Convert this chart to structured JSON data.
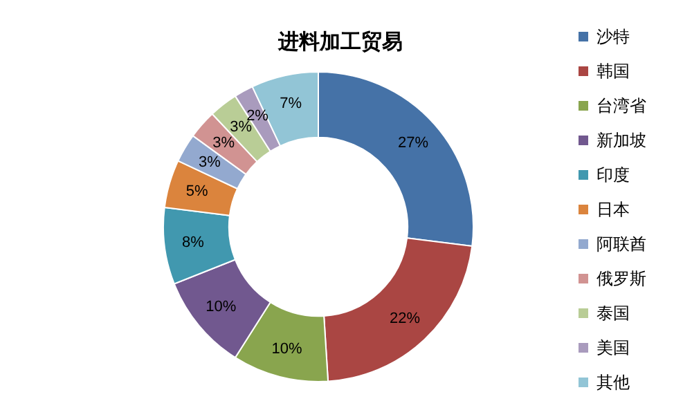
{
  "chart_data": {
    "type": "donut",
    "title": "进料加工贸易",
    "categories": [
      "沙特",
      "韩国",
      "台湾省",
      "新加坡",
      "印度",
      "日本",
      "阿联酋",
      "俄罗斯",
      "泰国",
      "美国",
      "其他"
    ],
    "values": [
      27,
      22,
      10,
      10,
      8,
      5,
      3,
      3,
      3,
      2,
      7
    ],
    "value_labels": [
      "27%",
      "22%",
      "10%",
      "10%",
      "8%",
      "5%",
      "3%",
      "3%",
      "3%",
      "2%",
      "7%"
    ],
    "colors": [
      "#4572a7",
      "#aa4643",
      "#89a54e",
      "#71588f",
      "#4198af",
      "#db843d",
      "#93a9cf",
      "#d19392",
      "#b9cd96",
      "#a99bbd",
      "#92c5d6"
    ],
    "legend": "right"
  }
}
